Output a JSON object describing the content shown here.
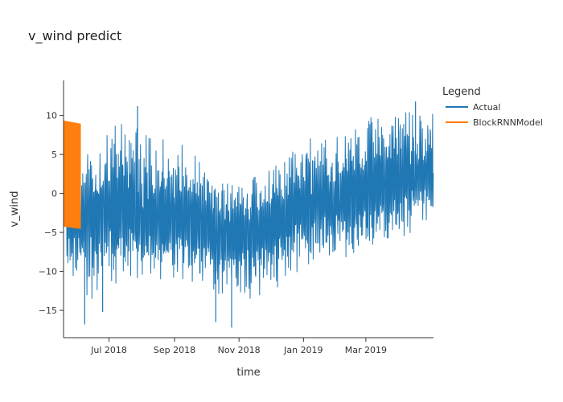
{
  "chart_data": {
    "type": "line",
    "title": "v_wind predict",
    "xlabel": "time",
    "ylabel": "v_wind",
    "ylim": [
      -18.5,
      14.5
    ],
    "xlim": [
      "2018-05-19",
      "2019-05-04"
    ],
    "y_ticks": [
      {
        "value": 10,
        "label": "10"
      },
      {
        "value": 5,
        "label": "5"
      },
      {
        "value": 0,
        "label": "0"
      },
      {
        "value": -5,
        "label": "−5"
      },
      {
        "value": -10,
        "label": "−10"
      },
      {
        "value": -15,
        "label": "−15"
      }
    ],
    "x_ticks": [
      {
        "date": "2018-07-01",
        "label": "Jul 2018"
      },
      {
        "date": "2018-09-01",
        "label": "Sep 2018"
      },
      {
        "date": "2018-11-01",
        "label": "Nov 2018"
      },
      {
        "date": "2019-01-01",
        "label": "Jan 2019"
      },
      {
        "date": "2019-03-01",
        "label": "Mar 2019"
      }
    ],
    "legend": {
      "title": "Legend",
      "position": "right"
    },
    "series": [
      {
        "name": "Actual",
        "color": "#1f77b4",
        "envelope": {
          "dates": [
            "2018-05-19",
            "2018-06-01",
            "2018-06-15",
            "2018-07-01",
            "2018-07-15",
            "2018-08-01",
            "2018-08-15",
            "2018-09-01",
            "2018-09-15",
            "2018-10-01",
            "2018-10-15",
            "2018-11-01",
            "2018-11-15",
            "2018-12-01",
            "2018-12-15",
            "2019-01-01",
            "2019-01-15",
            "2019-02-01",
            "2019-02-15",
            "2019-03-01",
            "2019-03-15",
            "2019-04-01",
            "2019-04-15",
            "2019-05-04"
          ],
          "upper": [
            7,
            5,
            6,
            8,
            10,
            9,
            8,
            7,
            6,
            4,
            3,
            2,
            3,
            4,
            6,
            7,
            8,
            8,
            9,
            10,
            11,
            12,
            12,
            12
          ],
          "lower": [
            -10,
            -13,
            -14,
            -13,
            -12,
            -12,
            -12,
            -11,
            -12,
            -13,
            -14,
            -14,
            -14,
            -13,
            -11,
            -10,
            -9,
            -9,
            -8,
            -8,
            -7,
            -7,
            -6,
            -3
          ],
          "mean": [
            -2,
            -3,
            -3,
            -2,
            -2,
            -3,
            -3,
            -3,
            -3,
            -4,
            -5,
            -5,
            -5,
            -4,
            -3,
            -2,
            -1,
            -1,
            0,
            0,
            1,
            2,
            2,
            3
          ]
        },
        "extremes": [
          {
            "date": "2018-06-08",
            "value": -16.8
          },
          {
            "date": "2018-06-25",
            "value": -15.2
          },
          {
            "date": "2018-10-25",
            "value": -17.2
          },
          {
            "date": "2018-10-10",
            "value": -16.5
          },
          {
            "date": "2018-07-28",
            "value": 11.2
          },
          {
            "date": "2019-04-17",
            "value": 11.8
          }
        ]
      },
      {
        "name": "BlockRNNModel",
        "color": "#ff7f0e",
        "envelope": {
          "dates": [
            "2018-05-19",
            "2018-06-04"
          ],
          "upper": [
            9.3,
            8.9
          ],
          "lower": [
            -4.2,
            -4.5
          ]
        }
      }
    ]
  }
}
